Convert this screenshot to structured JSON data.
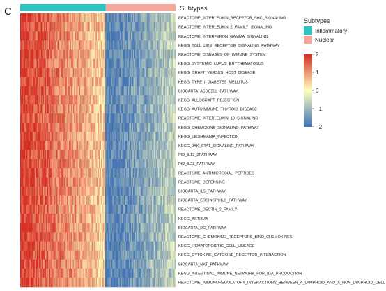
{
  "panel_label": "C",
  "colors": {
    "inflammatory": "#2EC4C4",
    "nuclear": "#F4A79A",
    "high": "#D73027",
    "mid": "#FFFFBF",
    "low": "#4575B4"
  },
  "chart_data": {
    "type": "heatmap",
    "annotation": {
      "title": "Subtypes",
      "groups": [
        {
          "name": "Inflammatory",
          "fraction": 0.55
        },
        {
          "name": "Nuclear",
          "fraction": 0.45
        }
      ]
    },
    "rows": [
      "REACTOME_INTERLEUKIN_RECEPTOR_SHC_SIGNALING",
      "REACTOME_INTERLEUKIN_2_FAMILY_SIGNALING",
      "REACTOME_INTERFERON_GAMMA_SIGNALING",
      "KEGG_TOLL_LIKE_RECEPTOR_SIGNALING_PATHWAY",
      "REACTOME_DISEASES_OF_IMMUNE_SYSTEM",
      "KEGG_SYSTEMIC_LUPUS_ERYTHEMATOSUS",
      "KEGG_GRAFT_VERSUS_HOST_DISEASE",
      "KEGG_TYPE_I_DIABETES_MELLITUS",
      "BIOCARTA_ASBCELL_PATHWAY",
      "KEGG_ALLOGRAFT_REJECTION",
      "KEGG_AUTOIMMUNE_THYROID_DISEASE",
      "REACTOME_INTERLEUKIN_10_SIGNALING",
      "KEGG_CHEMOKINE_SIGNALING_PATHWAY",
      "KEGG_LEISHMANIA_INFECTION",
      "KEGG_JAK_STAT_SIGNALING_PATHWAY",
      "PID_IL12_2PATHWAY",
      "PID_IL23_PATHWAY",
      "REACTOME_ANTIMICROBIAL_PEPTIDES",
      "REACTOME_DEFENSINS",
      "BIOCARTA_IL5_PATHWAY",
      "BIOCARTA_EOSINOPHILS_PATHWAY",
      "REACTOME_DECTIN_2_FAMILY",
      "KEGG_ASTHMA",
      "BIOCARTA_DC_PATHWAY",
      "REACTOME_CHEMOKINE_RECEPTORS_BIND_CHEMOKINES",
      "KEGG_HEMATOPOIETIC_CELL_LINEAGE",
      "KEGG_CYTOKINE_CYTOKINE_RECEPTOR_INTERACTION",
      "BIOCARTA_NKT_PATHWAY",
      "KEGG_INTESTINAL_IMMUNE_NETWORK_FOR_IGA_PRODUCTION",
      "REACTOME_IMMUNOREGULATORY_INTERACTIONS_BETWEEN_A_LYMPHOID_AND_A_NON_LYMPHOID_CELL"
    ],
    "value_range": [
      -2,
      2
    ],
    "legend": {
      "title": "",
      "ticks": [
        2,
        1,
        0,
        -1,
        -2
      ],
      "tick_labels": [
        "2",
        "1",
        "0",
        "−1",
        "−2"
      ]
    },
    "trend": "values decrease from left (high, red) to right (low, blue) across all rows"
  }
}
